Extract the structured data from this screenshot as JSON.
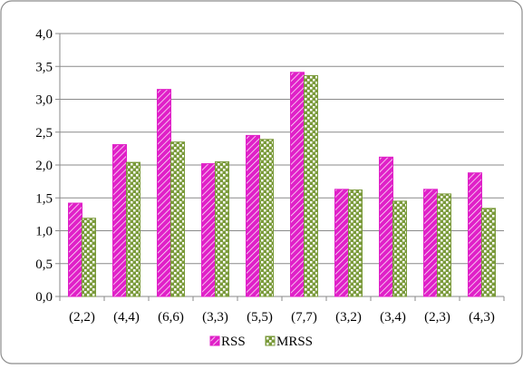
{
  "chart_data": {
    "type": "bar",
    "title": "",
    "xlabel": "",
    "ylabel": "",
    "categories": [
      "(2,2)",
      "(4,4)",
      "(6,6)",
      "(3,3)",
      "(5,5)",
      "(7,7)",
      "(3,2)",
      "(3,4)",
      "(2,3)",
      "(4,3)"
    ],
    "series": [
      {
        "name": "RSS",
        "values": [
          1.42,
          2.31,
          3.15,
          2.02,
          2.45,
          3.41,
          1.63,
          2.12,
          1.63,
          1.88
        ],
        "color": "#e020c8"
      },
      {
        "name": "MRSS",
        "values": [
          1.19,
          2.04,
          2.35,
          2.05,
          2.39,
          3.36,
          1.62,
          1.45,
          1.56,
          1.34
        ],
        "color": "#7a9a3a"
      }
    ],
    "ylim": [
      0,
      4.0
    ],
    "yticks": [
      "0,0",
      "0,5",
      "1,0",
      "1,5",
      "2,0",
      "2,5",
      "3,0",
      "3,5",
      "4,0"
    ],
    "ytick_values": [
      0,
      0.5,
      1.0,
      1.5,
      2.0,
      2.5,
      3.0,
      3.5,
      4.0
    ],
    "grid": true,
    "legend_position": "bottom"
  }
}
